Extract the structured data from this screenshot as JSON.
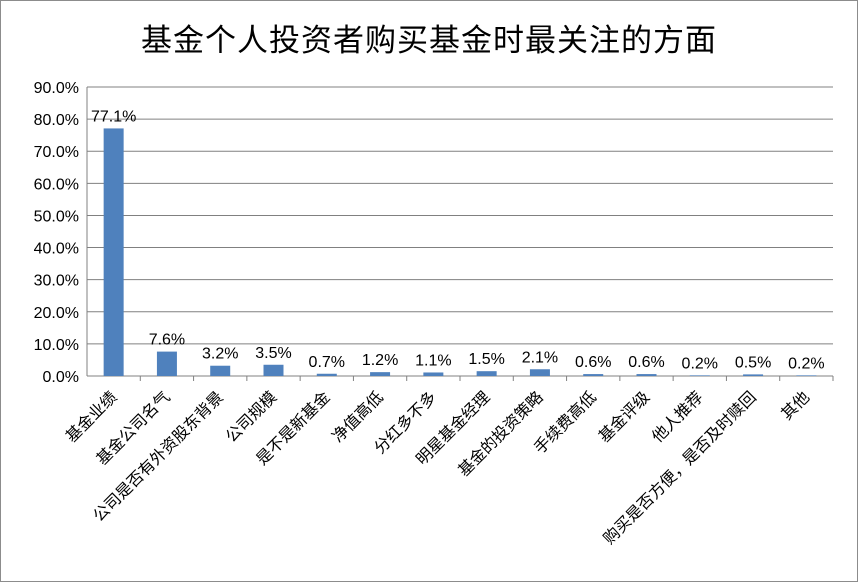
{
  "chart_data": {
    "type": "bar",
    "title": "基金个人投资者购买基金时最关注的方面",
    "categories": [
      "基金业绩",
      "基金公司名气",
      "公司是否有外资股东背景",
      "公司规模",
      "是不是新基金",
      "净值高低",
      "分红多不多",
      "明星基金经理",
      "基金的投资策略",
      "手续费高低",
      "基金评级",
      "他人推荐",
      "购买是否方便，是否及时赎回",
      "其他"
    ],
    "values": [
      77.1,
      7.6,
      3.2,
      3.5,
      0.7,
      1.2,
      1.1,
      1.5,
      2.1,
      0.6,
      0.6,
      0.2,
      0.5,
      0.2
    ],
    "value_labels": [
      "77.1%",
      "7.6%",
      "3.2%",
      "3.5%",
      "0.7%",
      "1.2%",
      "1.1%",
      "1.5%",
      "2.1%",
      "0.6%",
      "0.6%",
      "0.2%",
      "0.5%",
      "0.2%"
    ],
    "y_ticks": [
      "0.0%",
      "10.0%",
      "20.0%",
      "30.0%",
      "40.0%",
      "50.0%",
      "60.0%",
      "70.0%",
      "80.0%",
      "90.0%"
    ],
    "ylim": [
      0,
      90
    ],
    "xlabel": "",
    "ylabel": "",
    "grid": true,
    "legend": "none",
    "bar_color": "#4f81bd"
  }
}
